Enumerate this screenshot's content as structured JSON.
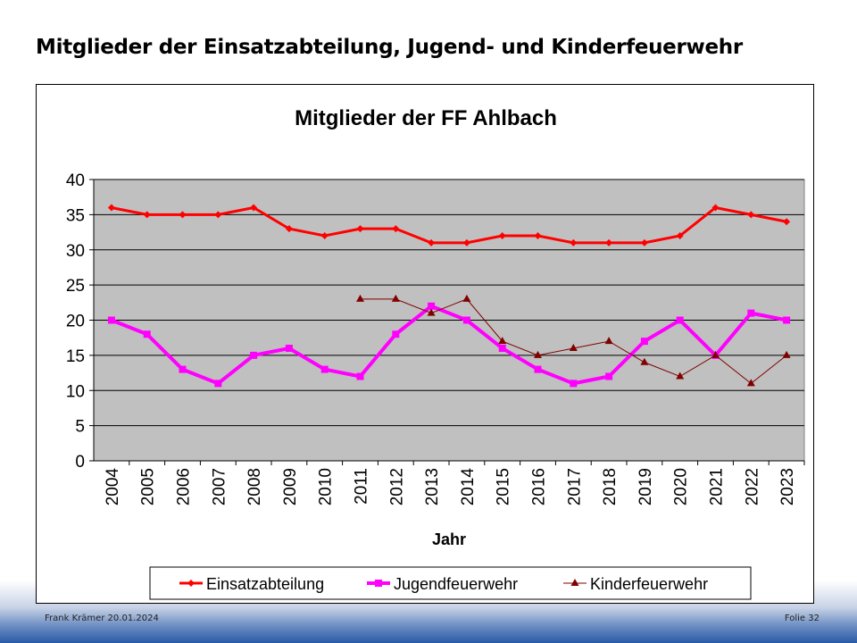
{
  "slide_title": "Mitglieder der Einsatzabteilung, Jugend- und Kinderfeuerwehr",
  "footer": {
    "left": "Frank Krämer 20.01.2024",
    "right": "Folie 32"
  },
  "chart_data": {
    "type": "line",
    "title": "Mitglieder der FF Ahlbach",
    "xlabel": "Jahr",
    "ylabel": "",
    "ylim": [
      0,
      40
    ],
    "yticks": [
      0,
      5,
      10,
      15,
      20,
      25,
      30,
      35,
      40
    ],
    "grid": true,
    "legend_position": "bottom",
    "categories": [
      "2004",
      "2005",
      "2006",
      "2007",
      "2008",
      "2009",
      "2010",
      "2011",
      "2012",
      "2013",
      "2014",
      "2015",
      "2016",
      "2017",
      "2018",
      "2019",
      "2020",
      "2021",
      "2022",
      "2023"
    ],
    "series": [
      {
        "name": "Einsatzabteilung",
        "color": "#ff0000",
        "marker": "diamond",
        "values": [
          36,
          35,
          35,
          35,
          36,
          33,
          32,
          33,
          33,
          31,
          31,
          32,
          32,
          31,
          31,
          31,
          32,
          36,
          35,
          34
        ]
      },
      {
        "name": "Jugendfeuerwehr",
        "color": "#ff00ff",
        "marker": "square",
        "values": [
          20,
          18,
          13,
          11,
          15,
          16,
          13,
          12,
          18,
          22,
          20,
          16,
          13,
          11,
          12,
          17,
          20,
          15,
          21,
          20
        ]
      },
      {
        "name": "Kinderfeuerwehr",
        "color": "#800000",
        "marker": "triangle",
        "values": [
          null,
          null,
          null,
          null,
          null,
          null,
          null,
          23,
          23,
          21,
          23,
          17,
          15,
          16,
          17,
          14,
          12,
          15,
          11,
          15
        ]
      }
    ]
  }
}
